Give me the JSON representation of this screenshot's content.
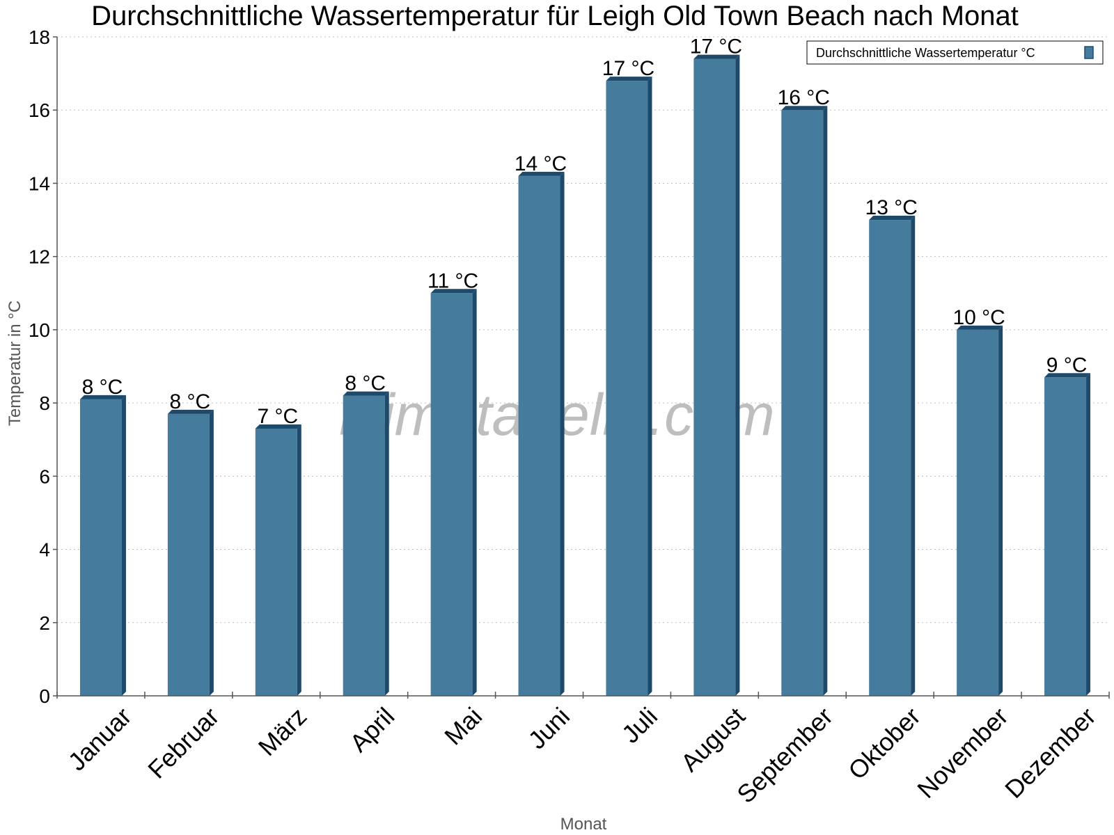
{
  "chart_data": {
    "type": "bar",
    "title": "Durchschnittliche Wassertemperatur für Leigh Old Town Beach nach Monat",
    "xlabel": "Monat",
    "ylabel": "Temperatur in °C",
    "ylim": [
      0,
      18
    ],
    "yticks": [
      "0",
      "2",
      "4",
      "6",
      "8",
      "10",
      "12",
      "14",
      "16",
      "18"
    ],
    "grid": true,
    "legend_position": "top-right",
    "categories": [
      "Januar",
      "Februar",
      "März",
      "April",
      "Mai",
      "Juni",
      "Juli",
      "August",
      "September",
      "Oktober",
      "November",
      "Dezember"
    ],
    "series": [
      {
        "name": "Durchschnittliche Wassertemperatur °C",
        "values": [
          8.1,
          7.7,
          7.3,
          8.2,
          11.0,
          14.2,
          16.8,
          17.4,
          16.0,
          13.0,
          10.0,
          8.7
        ],
        "labels": [
          "8 °C",
          "8 °C",
          "7 °C",
          "8 °C",
          "11 °C",
          "14 °C",
          "17 °C",
          "17 °C",
          "16 °C",
          "13 °C",
          "10 °C",
          "9 °C"
        ],
        "color": "#457b9d",
        "shade_color": "#1d4a6b"
      }
    ]
  },
  "watermark": "klimatabelle.com"
}
